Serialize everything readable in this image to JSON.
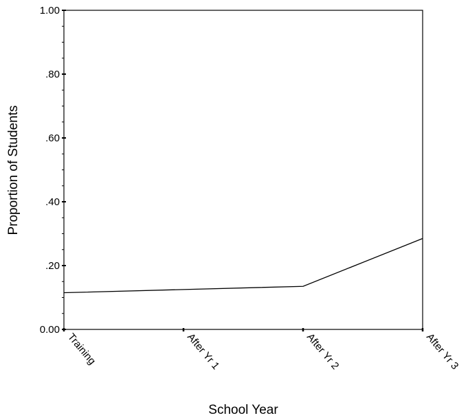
{
  "chart_data": {
    "type": "line",
    "title": "",
    "xlabel": "School Year",
    "ylabel": "Proportion of Students",
    "categories": [
      "Training",
      "After Yr 1",
      "After Yr 2",
      "After Yr 3"
    ],
    "series": [
      {
        "values": [
          0.115,
          0.125,
          0.135,
          0.285
        ]
      }
    ],
    "ylim": [
      0,
      1
    ],
    "yticks": [
      {
        "value": 0.0,
        "label": "0.00"
      },
      {
        "value": 0.2,
        "label": ".20"
      },
      {
        "value": 0.4,
        "label": ".40"
      },
      {
        "value": 0.6,
        "label": ".60"
      },
      {
        "value": 0.8,
        "label": ".80"
      },
      {
        "value": 1.0,
        "label": "1.00"
      }
    ],
    "grid": false,
    "legend": "none",
    "line_color": "#000000"
  }
}
